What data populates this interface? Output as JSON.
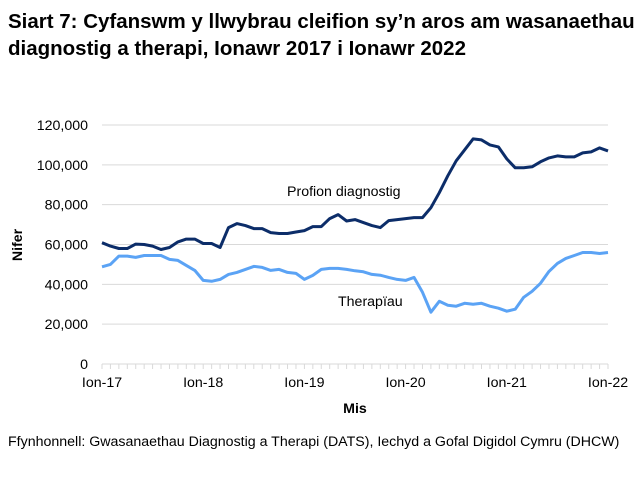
{
  "chart_data": {
    "type": "line",
    "title": "Siart 7: Cyfanswm y llwybrau cleifion sy’n aros am wasanaethau diagnostig a therapi, Ionawr 2017 i Ionawr 2022",
    "xlabel": "Mis",
    "ylabel": "Nifer",
    "ylim": [
      0,
      120000
    ],
    "yticks": [
      "0",
      "20,000",
      "40,000",
      "60,000",
      "80,000",
      "100,000",
      "120,000"
    ],
    "xtick_labels": [
      "Ion-17",
      "Ion-18",
      "Ion-19",
      "Ion-20",
      "Ion-21",
      "Ion-22"
    ],
    "x_range": [
      "2017-01",
      "2022-01"
    ],
    "grid": "horizontal",
    "series": [
      {
        "name": "Profion diagnostig",
        "color": "#0c2d69",
        "values": [
          60900,
          59200,
          58000,
          58000,
          60200,
          60000,
          59200,
          57500,
          58500,
          61300,
          62700,
          62700,
          60500,
          60500,
          58500,
          68500,
          70500,
          69500,
          68000,
          68000,
          66000,
          65500,
          65500,
          66300,
          67000,
          69000,
          69000,
          73000,
          75000,
          71800,
          72500,
          71000,
          69500,
          68500,
          72000,
          72500,
          73000,
          73500,
          73500,
          78500,
          86000,
          94500,
          102000,
          107500,
          113000,
          112500,
          110000,
          109000,
          103000,
          98500,
          98500,
          99000,
          101500,
          103500,
          104500,
          104000,
          104000,
          106000,
          106500,
          108500,
          107000
        ]
      },
      {
        "name": "Therapïau",
        "color": "#5ba3f5",
        "values": [
          48800,
          50000,
          54200,
          54200,
          53500,
          54500,
          54500,
          54500,
          52500,
          52000,
          49500,
          47000,
          42000,
          41500,
          42500,
          45000,
          46000,
          47500,
          49000,
          48500,
          47000,
          47500,
          46000,
          45500,
          42500,
          44500,
          47500,
          48000,
          48000,
          47500,
          46800,
          46300,
          45000,
          44600,
          43500,
          42500,
          42000,
          43500,
          36000,
          26000,
          31500,
          29500,
          29000,
          30500,
          30000,
          30500,
          29000,
          28000,
          26500,
          27500,
          33500,
          36500,
          40500,
          46500,
          50500,
          53000,
          54500,
          56000,
          56000,
          55500,
          56000
        ]
      }
    ]
  },
  "source": "Ffynhonnell: Gwasanaethau Diagnostig a Therapi (DATS), Iechyd a Gofal Digidol Cymru (DHCW)"
}
